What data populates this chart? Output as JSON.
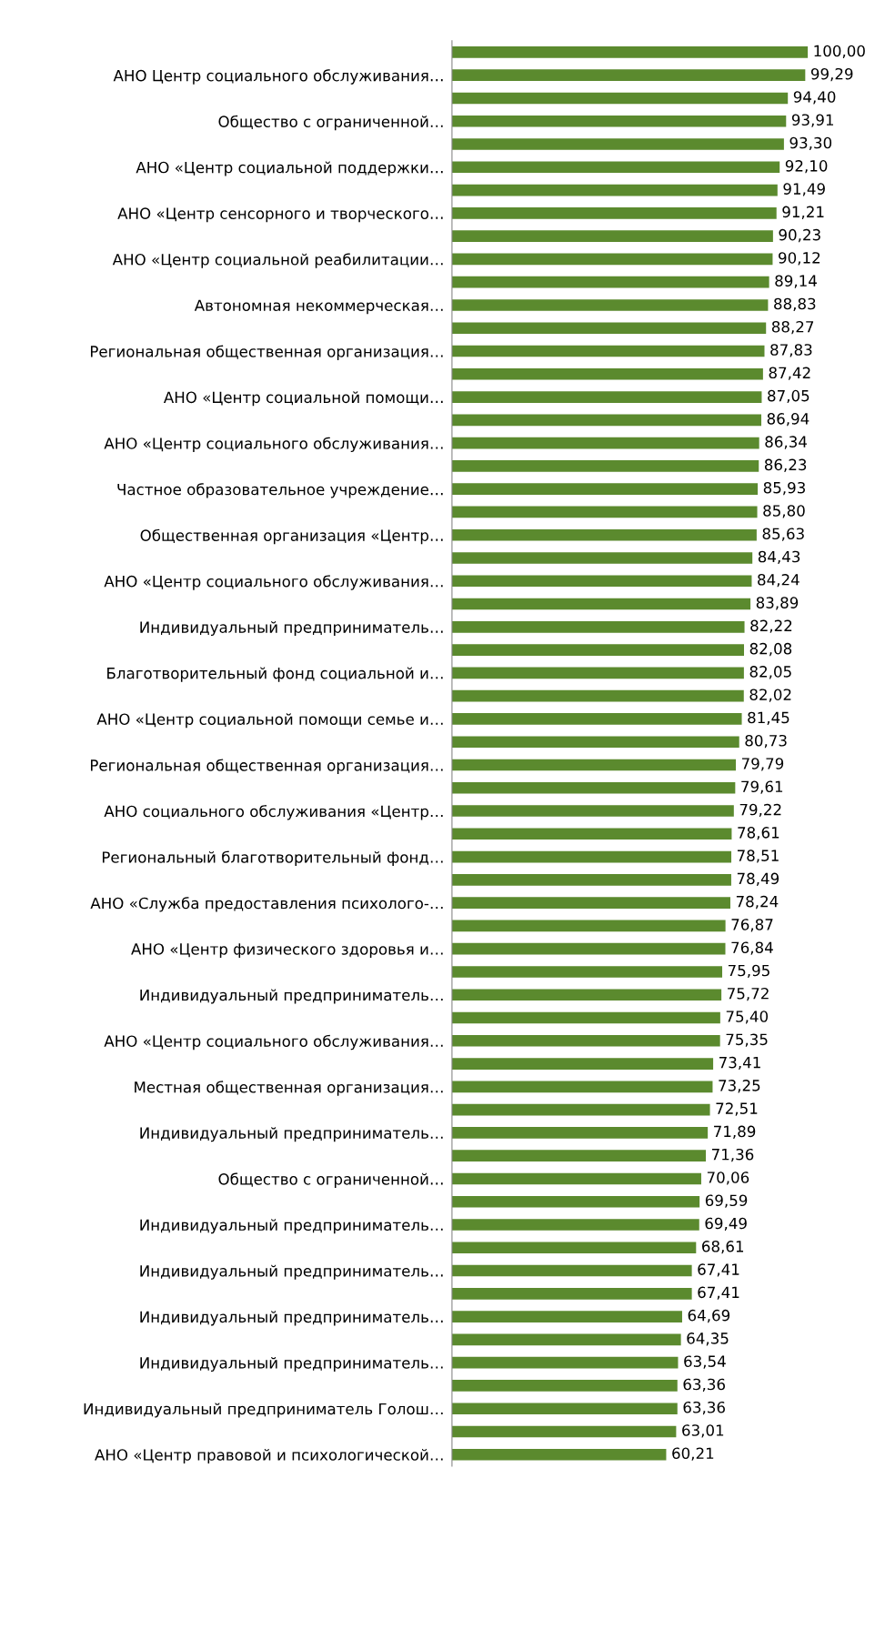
{
  "chart_data": {
    "type": "bar",
    "orientation": "horizontal",
    "color": "#5b8a2e",
    "categories": [
      null,
      "АНО Центр социального обслуживания…",
      null,
      "Общество с ограниченной…",
      null,
      "АНО «Центр социальной поддержки…",
      null,
      "АНО «Центр сенсорного и творческого…",
      null,
      "АНО «Центр социальной реабилитации…",
      null,
      "Автономная некоммерческая…",
      null,
      "Региональная общественная организация…",
      null,
      "АНО «Центр социальной помощи…",
      null,
      "АНО «Центр социального обслуживания…",
      null,
      "Частное образовательное учреждение…",
      null,
      "Общественная организация «Центр…",
      null,
      "АНО «Центр социального обслуживания…",
      null,
      "Индивидуальный предприниматель…",
      null,
      "Благотворительный фонд социальной и…",
      null,
      "АНО «Центр социальной помощи семье и…",
      null,
      "Региональная общественная организация…",
      null,
      "АНО социального обслуживания «Центр…",
      null,
      "Региональный благотворительный фонд…",
      null,
      "АНО «Служба предоставления психолого-…",
      null,
      "АНО «Центр физического здоровья и…",
      null,
      "Индивидуальный предприниматель…",
      null,
      "АНО «Центр социального обслуживания…",
      null,
      "Местная общественная организация…",
      null,
      "Индивидуальный предприниматель…",
      null,
      "Общество с ограниченной…",
      null,
      "Индивидуальный предприниматель…",
      null,
      "Индивидуальный предприниматель…",
      null,
      "Индивидуальный предприниматель…",
      null,
      "Индивидуальный предприниматель…",
      null,
      "Индивидуальный предприниматель Голош…",
      null,
      "АНО «Центр правовой и психологической…"
    ],
    "values": [
      100.0,
      99.29,
      94.4,
      93.91,
      93.3,
      92.1,
      91.49,
      91.21,
      90.23,
      90.12,
      89.14,
      88.83,
      88.27,
      87.83,
      87.42,
      87.05,
      86.94,
      86.34,
      86.23,
      85.93,
      85.8,
      85.63,
      84.43,
      84.24,
      83.89,
      82.22,
      82.08,
      82.05,
      82.02,
      81.45,
      80.73,
      79.79,
      79.61,
      79.22,
      78.61,
      78.51,
      78.49,
      78.24,
      76.87,
      76.84,
      75.95,
      75.72,
      75.4,
      75.35,
      73.41,
      73.25,
      72.51,
      71.89,
      71.36,
      70.06,
      69.59,
      69.49,
      68.61,
      67.41,
      67.41,
      64.69,
      64.35,
      63.54,
      63.36,
      63.36,
      63.01,
      60.21
    ],
    "value_labels": [
      "100,00",
      "99,29",
      "94,40",
      "93,91",
      "93,30",
      "92,10",
      "91,49",
      "91,21",
      "90,23",
      "90,12",
      "89,14",
      "88,83",
      "88,27",
      "87,83",
      "87,42",
      "87,05",
      "86,94",
      "86,34",
      "86,23",
      "85,93",
      "85,80",
      "85,63",
      "84,43",
      "84,24",
      "83,89",
      "82,22",
      "82,08",
      "82,05",
      "82,02",
      "81,45",
      "80,73",
      "79,79",
      "79,61",
      "79,22",
      "78,61",
      "78,51",
      "78,49",
      "78,24",
      "76,87",
      "76,84",
      "75,95",
      "75,72",
      "75,40",
      "75,35",
      "73,41",
      "73,25",
      "72,51",
      "71,89",
      "71,36",
      "70,06",
      "69,59",
      "69,49",
      "68,61",
      "67,41",
      "67,41",
      "64,69",
      "64,35",
      "63,54",
      "63,36",
      "63,36",
      "63,01",
      "60,21"
    ]
  }
}
